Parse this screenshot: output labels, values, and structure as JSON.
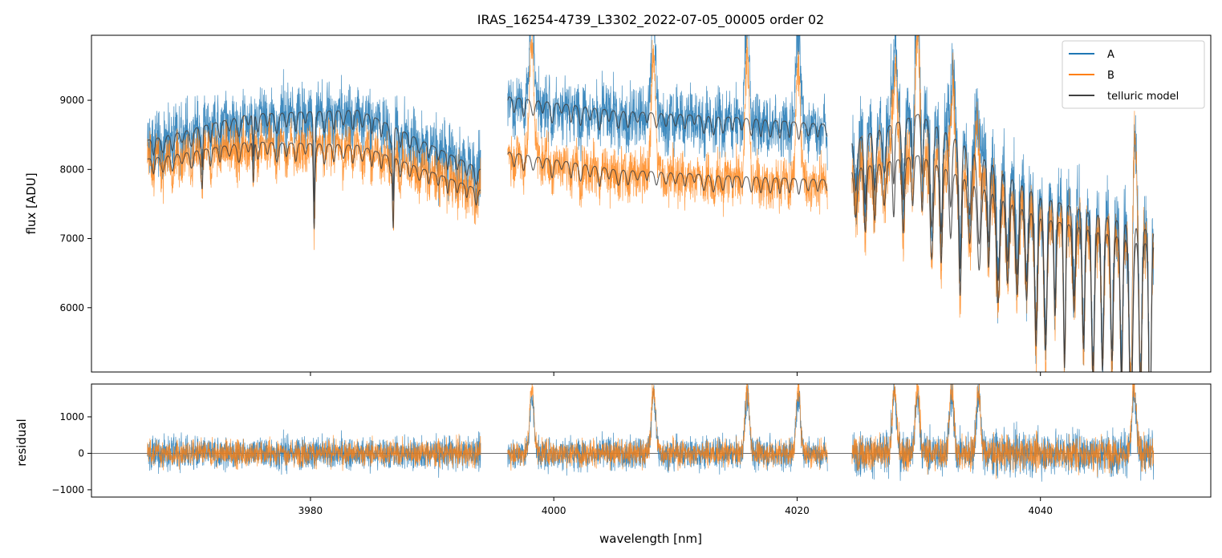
{
  "chart_data": {
    "type": "line",
    "title": "IRAS_16254-4739_L3302_2022-07-05_00005  order 02",
    "xlabel": "wavelength [nm]",
    "x_ticks": [
      3980,
      4000,
      4020,
      4040
    ],
    "xlim": [
      3962,
      4054
    ],
    "legend_position": "top-right",
    "gaps": [
      [
        3994.0,
        3996.2
      ],
      [
        4022.5,
        4024.5
      ]
    ],
    "x_start": 3966.6,
    "x_end": 4049.3,
    "colors": {
      "A": "#1f77b4",
      "B": "#ff7f0e",
      "model": "#404040"
    },
    "panels": [
      {
        "ylabel": "flux [ADU]",
        "ylim": [
          5070,
          9940
        ],
        "y_ticks": [
          6000,
          7000,
          8000,
          9000
        ],
        "series": [
          {
            "name": "A",
            "key": "A",
            "continuum": [
              [
                3966.6,
                8420
              ],
              [
                3975,
                8800
              ],
              [
                3984,
                8860
              ],
              [
                3994,
                8000
              ],
              [
                3996.3,
                9050
              ],
              [
                4005,
                8850
              ],
              [
                4015,
                8750
              ],
              [
                4022.5,
                8650
              ],
              [
                4024.5,
                8420
              ],
              [
                4030,
                8800
              ],
              [
                4040,
                7600
              ],
              [
                4049.3,
                7100
              ]
            ]
          },
          {
            "name": "B",
            "key": "B",
            "continuum": [
              [
                3966.6,
                8150
              ],
              [
                3975,
                8400
              ],
              [
                3984,
                8350
              ],
              [
                3994,
                7700
              ],
              [
                3996.3,
                8250
              ],
              [
                4005,
                8000
              ],
              [
                4015,
                7900
              ],
              [
                4022.5,
                7850
              ],
              [
                4024.5,
                8000
              ],
              [
                4030,
                8200
              ],
              [
                4040,
                7300
              ],
              [
                4049.3,
                6900
              ]
            ]
          },
          {
            "name": "telluric model",
            "key": "model"
          }
        ]
      },
      {
        "ylabel": "residual",
        "ylim": [
          -1200,
          1900
        ],
        "y_ticks": [
          -1000,
          0,
          1000
        ],
        "series": [
          {
            "name": "A",
            "key": "A"
          },
          {
            "name": "B",
            "key": "B"
          }
        ]
      }
    ],
    "emission_features": [
      3998.2,
      4008.2,
      4015.9,
      4020.1,
      4028.0,
      4029.9,
      4032.7,
      4034.9,
      4047.7
    ]
  }
}
